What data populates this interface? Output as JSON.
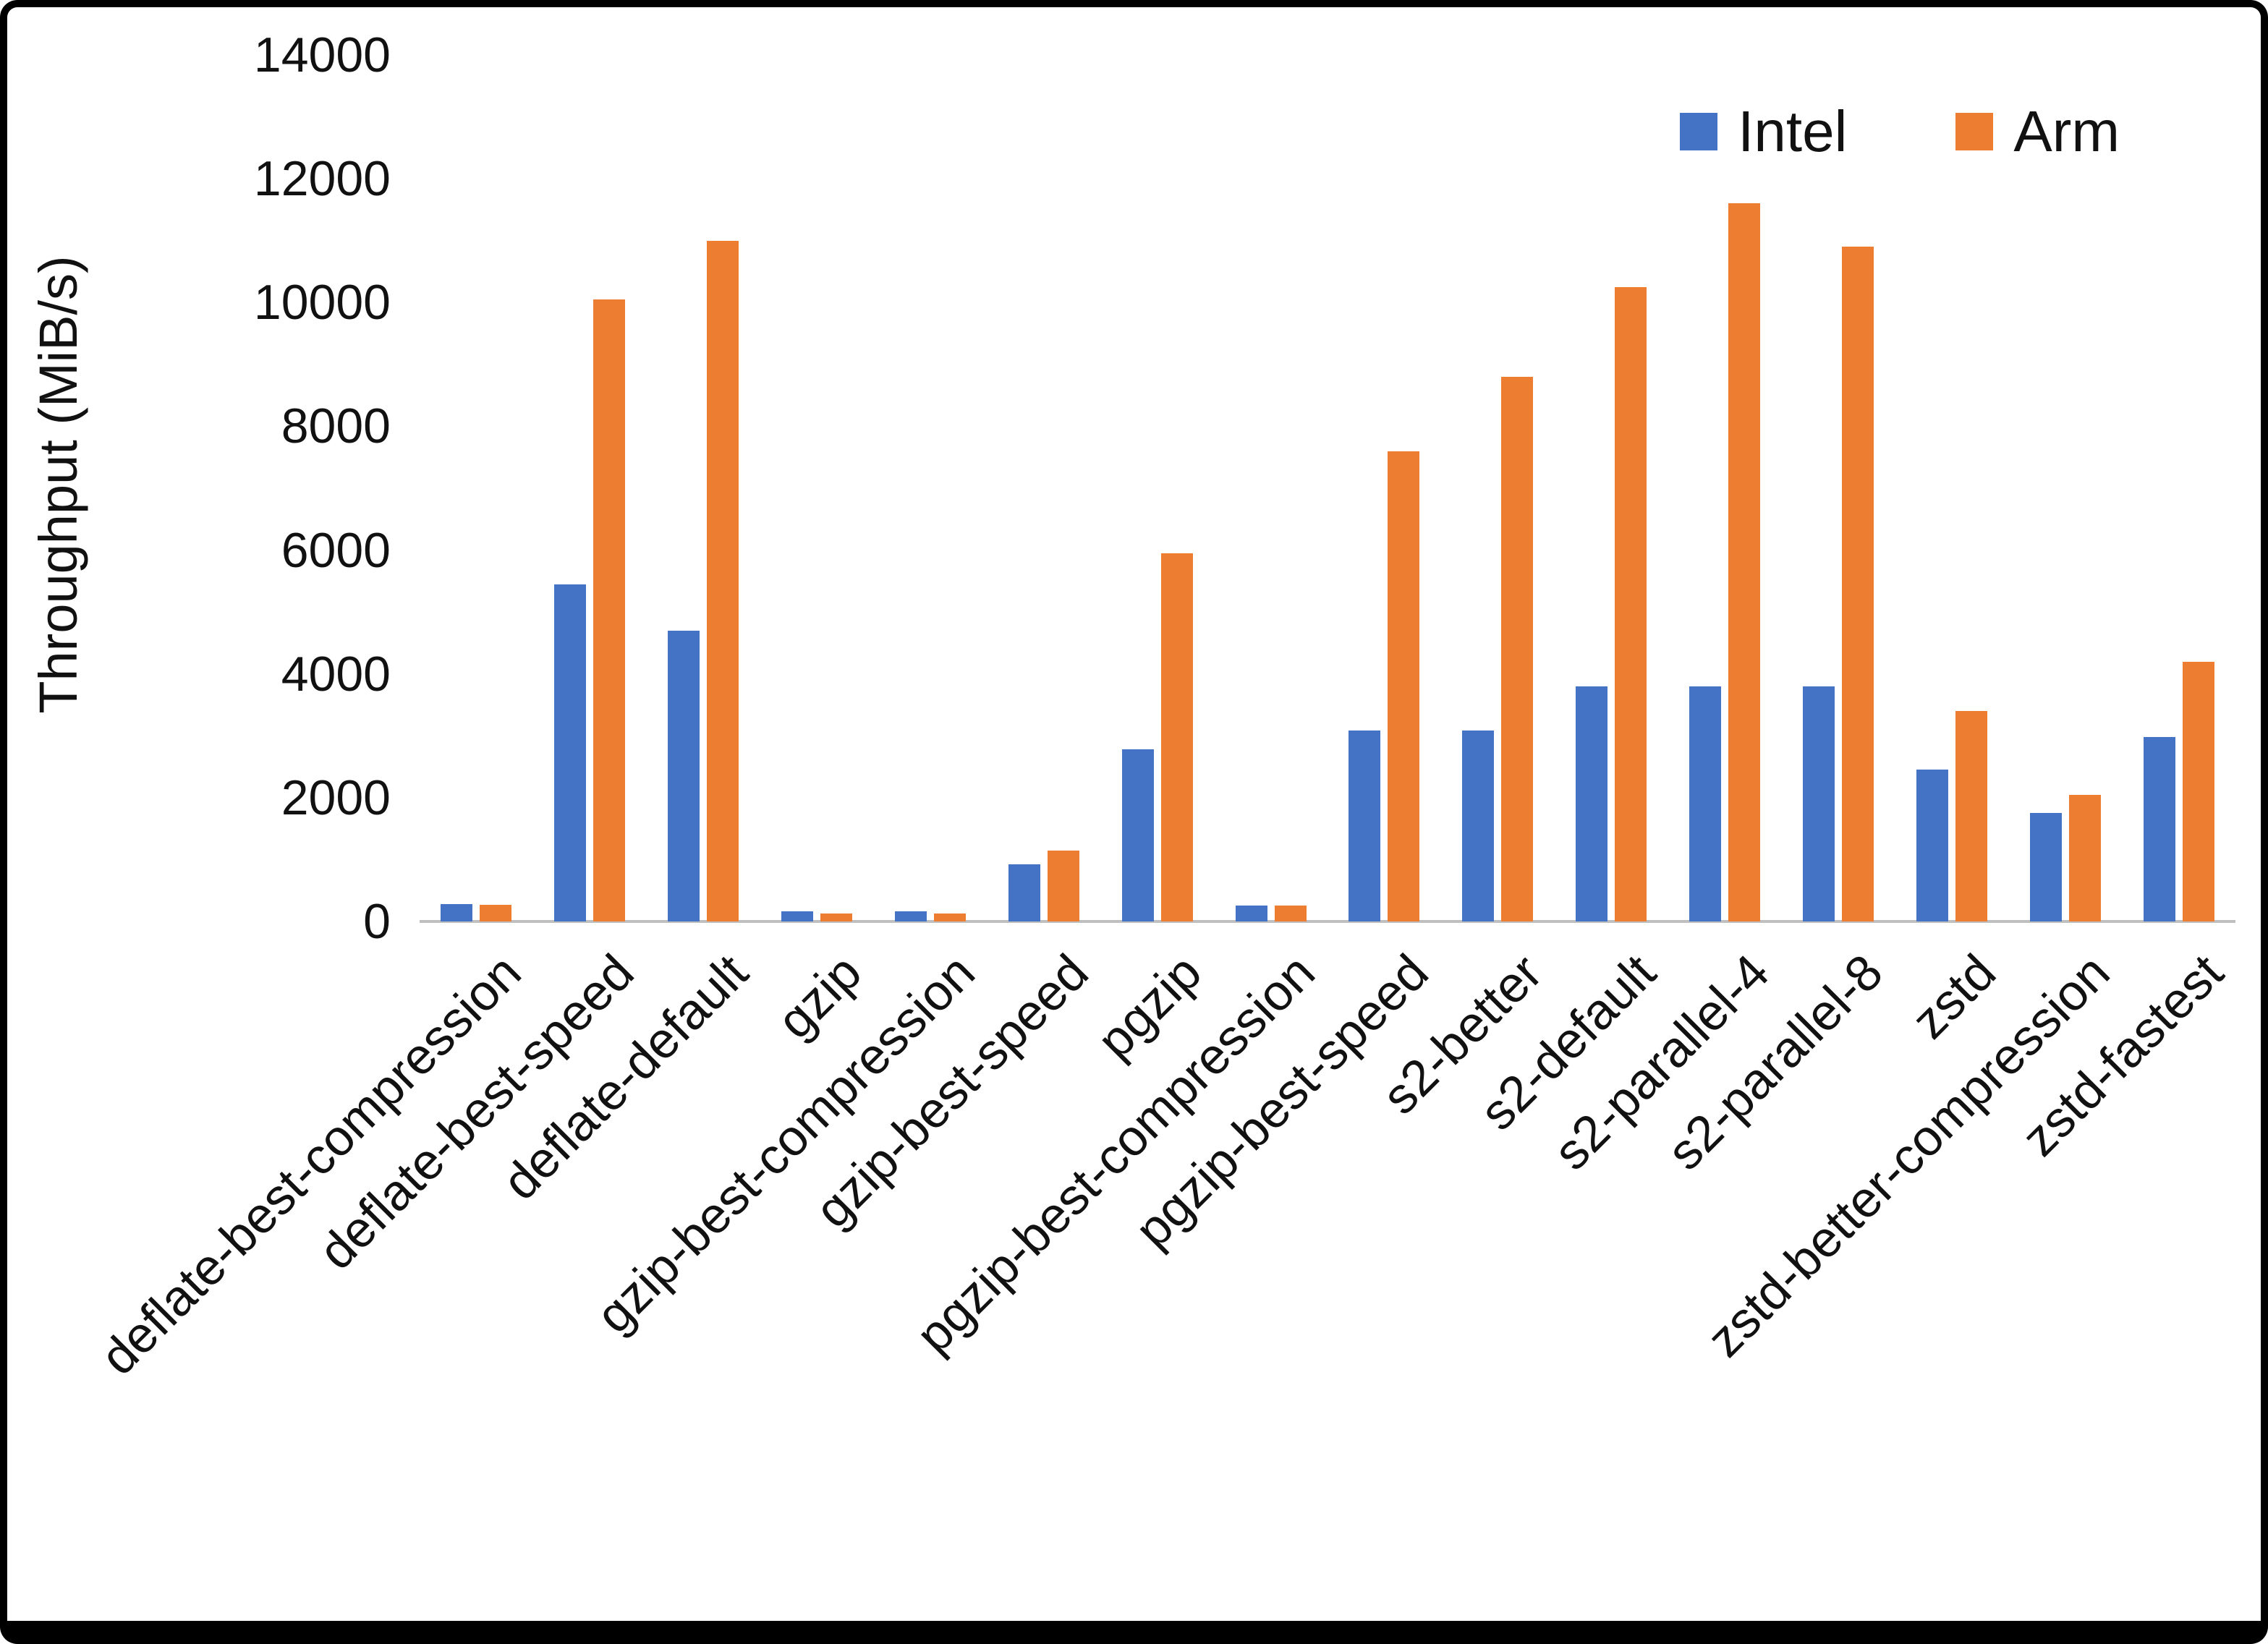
{
  "chart_data": {
    "type": "bar",
    "title": "",
    "ylabel": "Throughput (MiB/s)",
    "xlabel": "",
    "ylim": [
      0,
      14000
    ],
    "yticks": [
      0,
      2000,
      4000,
      6000,
      8000,
      10000,
      12000,
      14000
    ],
    "grid": false,
    "legend_position": "top-right",
    "categories": [
      "deflate-best-compression",
      "deflate-best-speed",
      "deflate-default",
      "gzip",
      "gzip-best-compression",
      "gzip-best-speed",
      "pgzip",
      "pgzip-best-compression",
      "pgzip-best-speed",
      "s2-better",
      "s2-default",
      "s2-parallel-4",
      "s2-parallel-8",
      "zstd",
      "zstd-better-compression",
      "zstd-fastest"
    ],
    "series": [
      {
        "name": "Intel",
        "color": "#4472C4",
        "values": [
          280,
          5450,
          4700,
          160,
          160,
          920,
          2780,
          260,
          3080,
          3080,
          3800,
          3800,
          3800,
          2450,
          1750,
          2980
        ]
      },
      {
        "name": "Arm",
        "color": "#ED7D31",
        "values": [
          270,
          10050,
          11000,
          130,
          130,
          1150,
          5950,
          260,
          7600,
          8800,
          10250,
          11600,
          10900,
          3400,
          2050,
          4200
        ]
      }
    ]
  },
  "colors": {
    "intel": "#4472C4",
    "arm": "#ED7D31",
    "axis_line": "#bfbfbf",
    "text": "#111111"
  }
}
